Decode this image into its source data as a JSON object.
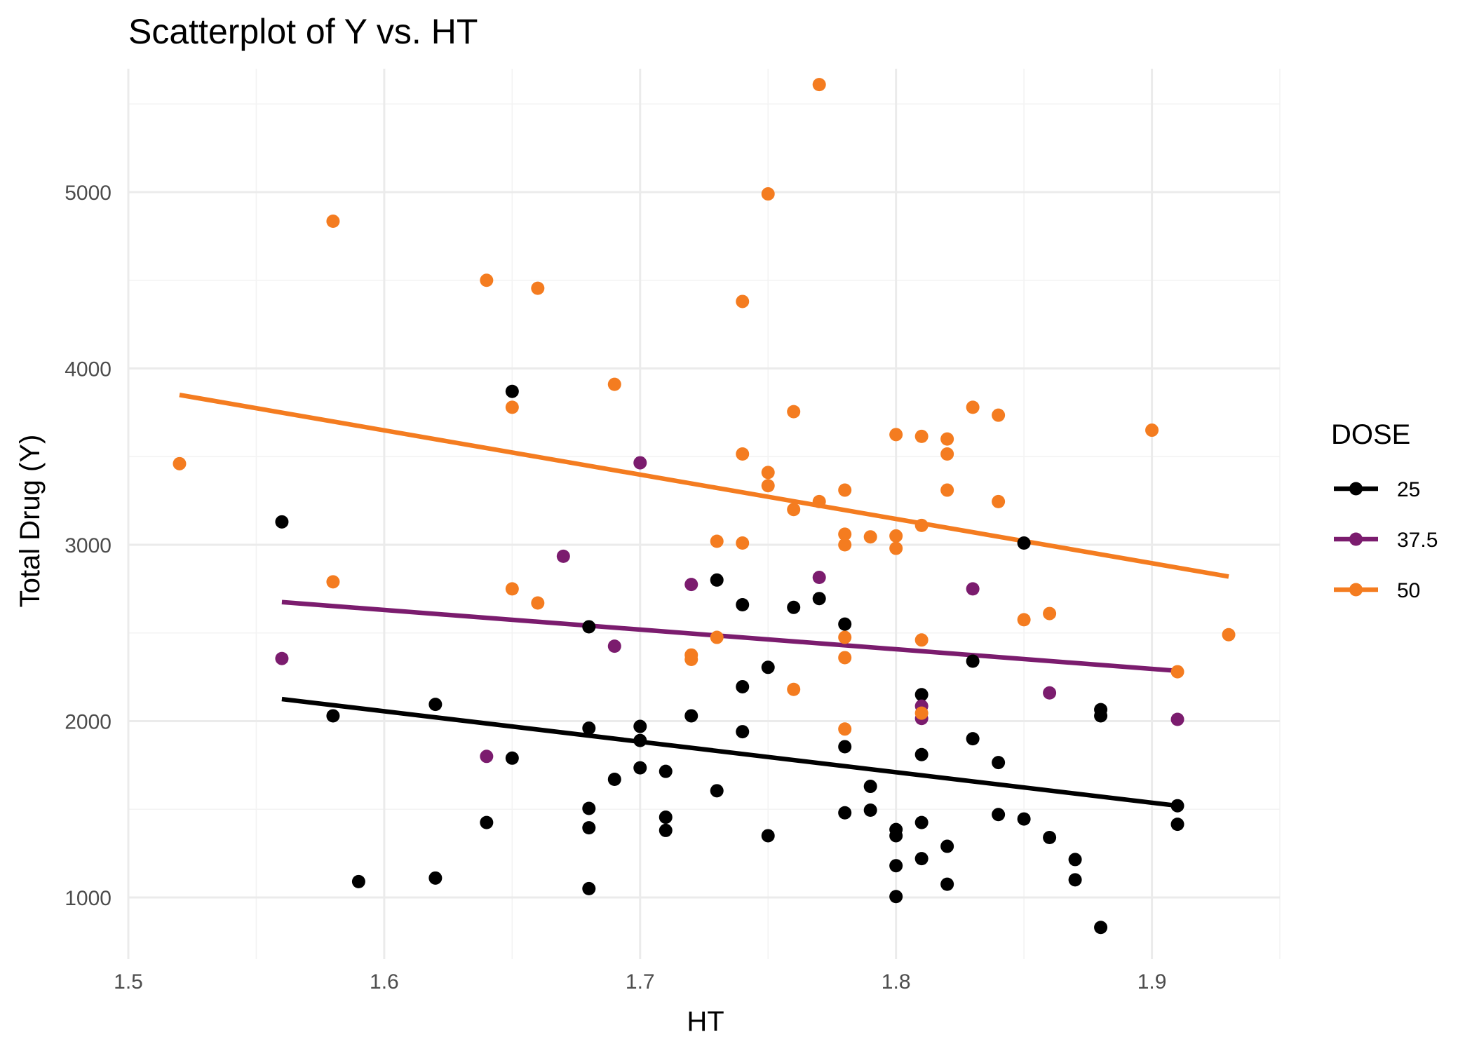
{
  "chart_data": {
    "type": "scatter",
    "title": "Scatterplot of Y vs. HT",
    "xlabel": "HT",
    "ylabel": "Total Drug (Y)",
    "xlim": [
      1.5,
      1.95
    ],
    "ylim": [
      650,
      5700
    ],
    "x_ticks": [
      1.5,
      1.6,
      1.7,
      1.8,
      1.9
    ],
    "x_tick_labels": [
      "1.5",
      "1.6",
      "1.7",
      "1.8",
      "1.9"
    ],
    "y_ticks": [
      1000,
      2000,
      3000,
      4000,
      5000
    ],
    "y_tick_labels": [
      "1000",
      "2000",
      "3000",
      "4000",
      "5000"
    ],
    "grid": true,
    "legend": {
      "title": "DOSE",
      "position": "right"
    },
    "series": [
      {
        "name": "25",
        "color": "#000000",
        "fit": {
          "x": [
            1.56,
            1.91
          ],
          "y": [
            2125,
            1520
          ]
        },
        "points": [
          [
            1.56,
            3130
          ],
          [
            1.58,
            2030
          ],
          [
            1.59,
            1090
          ],
          [
            1.62,
            2095
          ],
          [
            1.62,
            1110
          ],
          [
            1.64,
            1425
          ],
          [
            1.65,
            3870
          ],
          [
            1.65,
            1790
          ],
          [
            1.68,
            2535
          ],
          [
            1.68,
            1960
          ],
          [
            1.68,
            1505
          ],
          [
            1.68,
            1395
          ],
          [
            1.68,
            1050
          ],
          [
            1.69,
            1670
          ],
          [
            1.7,
            1970
          ],
          [
            1.7,
            1890
          ],
          [
            1.7,
            1735
          ],
          [
            1.71,
            1715
          ],
          [
            1.71,
            1455
          ],
          [
            1.71,
            1380
          ],
          [
            1.72,
            2030
          ],
          [
            1.73,
            2800
          ],
          [
            1.73,
            1605
          ],
          [
            1.74,
            2660
          ],
          [
            1.74,
            2195
          ],
          [
            1.74,
            1940
          ],
          [
            1.75,
            2305
          ],
          [
            1.75,
            1350
          ],
          [
            1.76,
            2645
          ],
          [
            1.77,
            2695
          ],
          [
            1.78,
            2550
          ],
          [
            1.78,
            1855
          ],
          [
            1.78,
            1480
          ],
          [
            1.79,
            1630
          ],
          [
            1.79,
            1495
          ],
          [
            1.8,
            1385
          ],
          [
            1.8,
            1350
          ],
          [
            1.8,
            1180
          ],
          [
            1.8,
            1005
          ],
          [
            1.81,
            2150
          ],
          [
            1.81,
            1810
          ],
          [
            1.81,
            1425
          ],
          [
            1.81,
            1220
          ],
          [
            1.82,
            1290
          ],
          [
            1.82,
            1075
          ],
          [
            1.83,
            2340
          ],
          [
            1.83,
            1900
          ],
          [
            1.84,
            1765
          ],
          [
            1.84,
            1470
          ],
          [
            1.85,
            3010
          ],
          [
            1.85,
            1445
          ],
          [
            1.86,
            1340
          ],
          [
            1.87,
            1215
          ],
          [
            1.87,
            1100
          ],
          [
            1.88,
            2065
          ],
          [
            1.88,
            2030
          ],
          [
            1.88,
            830
          ],
          [
            1.91,
            1520
          ],
          [
            1.91,
            1415
          ]
        ]
      },
      {
        "name": "37.5",
        "color": "#7b1c6e",
        "fit": {
          "x": [
            1.56,
            1.91
          ],
          "y": [
            2675,
            2285
          ]
        },
        "points": [
          [
            1.56,
            2355
          ],
          [
            1.64,
            1800
          ],
          [
            1.67,
            2935
          ],
          [
            1.69,
            2425
          ],
          [
            1.7,
            3465
          ],
          [
            1.72,
            2775
          ],
          [
            1.77,
            2815
          ],
          [
            1.81,
            2085
          ],
          [
            1.81,
            2015
          ],
          [
            1.83,
            2750
          ],
          [
            1.86,
            2160
          ],
          [
            1.91,
            2010
          ]
        ]
      },
      {
        "name": "50",
        "color": "#f47c20",
        "fit": {
          "x": [
            1.52,
            1.93
          ],
          "y": [
            3850,
            2820
          ]
        },
        "points": [
          [
            1.52,
            3460
          ],
          [
            1.58,
            4835
          ],
          [
            1.58,
            2790
          ],
          [
            1.64,
            4500
          ],
          [
            1.65,
            3780
          ],
          [
            1.65,
            2750
          ],
          [
            1.66,
            4455
          ],
          [
            1.66,
            2670
          ],
          [
            1.69,
            3910
          ],
          [
            1.72,
            2375
          ],
          [
            1.72,
            2350
          ],
          [
            1.73,
            3020
          ],
          [
            1.73,
            2475
          ],
          [
            1.74,
            4380
          ],
          [
            1.74,
            3515
          ],
          [
            1.74,
            3010
          ],
          [
            1.75,
            4990
          ],
          [
            1.75,
            3410
          ],
          [
            1.75,
            3335
          ],
          [
            1.76,
            3755
          ],
          [
            1.76,
            3200
          ],
          [
            1.76,
            2180
          ],
          [
            1.77,
            5610
          ],
          [
            1.77,
            3245
          ],
          [
            1.78,
            3310
          ],
          [
            1.78,
            3060
          ],
          [
            1.78,
            3000
          ],
          [
            1.78,
            2475
          ],
          [
            1.78,
            2360
          ],
          [
            1.78,
            1955
          ],
          [
            1.79,
            3045
          ],
          [
            1.8,
            3625
          ],
          [
            1.8,
            3050
          ],
          [
            1.8,
            2980
          ],
          [
            1.81,
            3615
          ],
          [
            1.81,
            3110
          ],
          [
            1.81,
            2460
          ],
          [
            1.81,
            2045
          ],
          [
            1.82,
            3600
          ],
          [
            1.82,
            3515
          ],
          [
            1.82,
            3310
          ],
          [
            1.83,
            3780
          ],
          [
            1.84,
            3735
          ],
          [
            1.84,
            3245
          ],
          [
            1.85,
            2575
          ],
          [
            1.86,
            2610
          ],
          [
            1.9,
            3650
          ],
          [
            1.91,
            2280
          ],
          [
            1.93,
            2490
          ]
        ]
      }
    ]
  }
}
